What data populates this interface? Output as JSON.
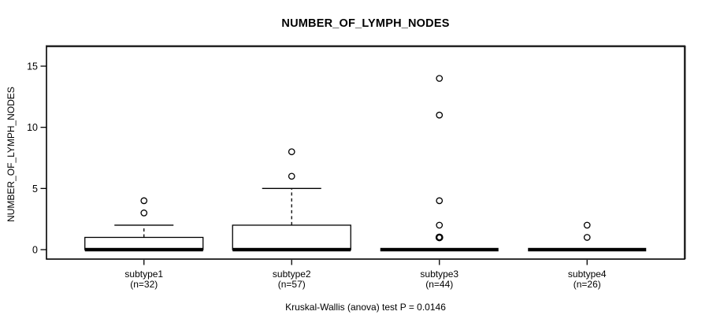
{
  "chart_data": {
    "type": "boxplot",
    "title": "NUMBER_OF_LYMPH_NODES",
    "ylabel": "NUMBER_OF_LYMPH_NODES",
    "xlabel": "",
    "footer": "Kruskal-Wallis (anova) test P = 0.0146",
    "p_value": "0.0146",
    "ylim": [
      0,
      16
    ],
    "yticks": [
      0,
      5,
      10,
      15
    ],
    "grid": false,
    "legend": false,
    "groups": [
      {
        "label": "subtype1",
        "sublabel": "(n=32)",
        "n": 32,
        "q1": 0,
        "median": 0,
        "q3": 1,
        "whisker_low": 0,
        "whisker_high": 2,
        "outliers": [
          3,
          4
        ]
      },
      {
        "label": "subtype2",
        "sublabel": "(n=57)",
        "n": 57,
        "q1": 0,
        "median": 0,
        "q3": 2,
        "whisker_low": 0,
        "whisker_high": 5,
        "outliers": [
          6,
          8
        ]
      },
      {
        "label": "subtype3",
        "sublabel": "(n=44)",
        "n": 44,
        "q1": 0,
        "median": 0,
        "q3": 0,
        "whisker_low": 0,
        "whisker_high": 0,
        "outliers": [
          1,
          1,
          2,
          4,
          11,
          14
        ]
      },
      {
        "label": "subtype4",
        "sublabel": "(n=26)",
        "n": 26,
        "q1": 0,
        "median": 0,
        "q3": 0,
        "whisker_low": 0,
        "whisker_high": 0,
        "outliers": [
          1,
          2
        ]
      }
    ],
    "colors": {
      "stroke": "#000000",
      "box_fill": "#ffffff",
      "frame_shadow": "#8c8c8c"
    }
  }
}
